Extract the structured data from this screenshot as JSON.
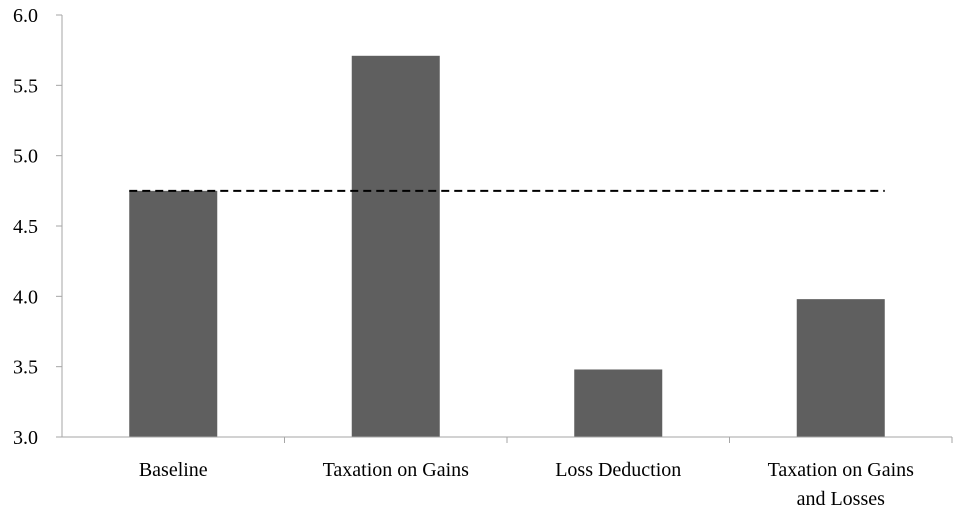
{
  "chart_data": {
    "type": "bar",
    "categories": [
      [
        "Baseline"
      ],
      [
        "Taxation on Gains"
      ],
      [
        "Loss Deduction"
      ],
      [
        "Taxation on Gains",
        "and Losses"
      ]
    ],
    "values": [
      4.75,
      5.71,
      3.48,
      3.98
    ],
    "ylim": [
      3.0,
      6.0
    ],
    "yticks": [
      "3.0",
      "3.5",
      "4.0",
      "4.5",
      "5.0",
      "5.5",
      "6.0"
    ],
    "reference_line": {
      "value": 4.75,
      "style": "dashed"
    },
    "bar_color": "#5f5f5f",
    "axis_color": "#a6a6a6",
    "grid": false,
    "title": "",
    "xlabel": "",
    "ylabel": ""
  }
}
